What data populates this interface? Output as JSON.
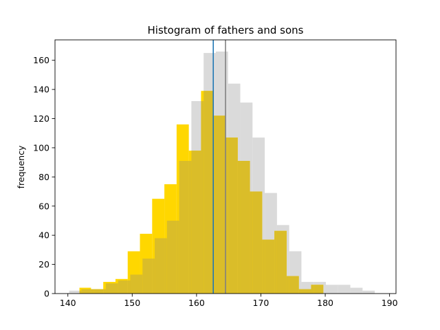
{
  "chart_data": {
    "type": "bar",
    "title": "Histogram of fathers and sons",
    "xlabel": "",
    "ylabel": "frequency",
    "xlim": [
      138,
      191
    ],
    "ylim": [
      0,
      174
    ],
    "xticks": [
      140,
      150,
      160,
      170,
      180,
      190
    ],
    "yticks": [
      0,
      20,
      40,
      60,
      80,
      100,
      120,
      140,
      160
    ],
    "grid": false,
    "series": [
      {
        "color": "#d3d3d3",
        "opacity": 0.85,
        "bins": [
          {
            "x0": 140.2,
            "x1": 142.1,
            "value": 2
          },
          {
            "x0": 142.1,
            "x1": 144.0,
            "value": 3
          },
          {
            "x0": 144.0,
            "x1": 145.9,
            "value": 3
          },
          {
            "x0": 145.9,
            "x1": 147.8,
            "value": 7
          },
          {
            "x0": 147.8,
            "x1": 149.7,
            "value": 9
          },
          {
            "x0": 149.7,
            "x1": 151.6,
            "value": 13
          },
          {
            "x0": 151.6,
            "x1": 153.5,
            "value": 24
          },
          {
            "x0": 153.5,
            "x1": 155.4,
            "value": 38
          },
          {
            "x0": 155.4,
            "x1": 157.3,
            "value": 50
          },
          {
            "x0": 157.3,
            "x1": 159.2,
            "value": 91
          },
          {
            "x0": 159.2,
            "x1": 161.1,
            "value": 132
          },
          {
            "x0": 161.1,
            "x1": 163.0,
            "value": 165
          },
          {
            "x0": 163.0,
            "x1": 164.9,
            "value": 166
          },
          {
            "x0": 164.9,
            "x1": 166.8,
            "value": 144
          },
          {
            "x0": 166.8,
            "x1": 168.7,
            "value": 131
          },
          {
            "x0": 168.7,
            "x1": 170.6,
            "value": 107
          },
          {
            "x0": 170.6,
            "x1": 172.5,
            "value": 69
          },
          {
            "x0": 172.5,
            "x1": 174.4,
            "value": 47
          },
          {
            "x0": 174.4,
            "x1": 176.3,
            "value": 29
          },
          {
            "x0": 176.3,
            "x1": 178.2,
            "value": 8
          },
          {
            "x0": 178.2,
            "x1": 180.1,
            "value": 8
          },
          {
            "x0": 180.1,
            "x1": 182.0,
            "value": 6
          },
          {
            "x0": 182.0,
            "x1": 183.9,
            "value": 6
          },
          {
            "x0": 183.9,
            "x1": 185.8,
            "value": 4
          },
          {
            "x0": 185.8,
            "x1": 187.7,
            "value": 2
          }
        ]
      },
      {
        "color": "#ffd700",
        "opacity": 1,
        "bins": [
          {
            "x0": 141.8,
            "x1": 143.6,
            "value": 4
          },
          {
            "x0": 143.6,
            "x1": 145.5,
            "value": 3
          },
          {
            "x0": 145.5,
            "x1": 147.4,
            "value": 8
          },
          {
            "x0": 147.4,
            "x1": 149.3,
            "value": 10
          },
          {
            "x0": 149.3,
            "x1": 151.2,
            "value": 29
          },
          {
            "x0": 151.2,
            "x1": 153.1,
            "value": 41
          },
          {
            "x0": 153.1,
            "x1": 155.0,
            "value": 65
          },
          {
            "x0": 155.0,
            "x1": 156.9,
            "value": 75
          },
          {
            "x0": 156.9,
            "x1": 158.8,
            "value": 116
          },
          {
            "x0": 158.8,
            "x1": 160.7,
            "value": 98
          },
          {
            "x0": 160.7,
            "x1": 162.6,
            "value": 139
          },
          {
            "x0": 162.6,
            "x1": 164.5,
            "value": 122
          },
          {
            "x0": 164.5,
            "x1": 166.4,
            "value": 107
          },
          {
            "x0": 166.4,
            "x1": 168.3,
            "value": 91
          },
          {
            "x0": 168.3,
            "x1": 170.2,
            "value": 70
          },
          {
            "x0": 170.2,
            "x1": 172.1,
            "value": 37
          },
          {
            "x0": 172.1,
            "x1": 174.0,
            "value": 43
          },
          {
            "x0": 174.0,
            "x1": 175.9,
            "value": 12
          },
          {
            "x0": 175.9,
            "x1": 177.8,
            "value": 3
          },
          {
            "x0": 177.8,
            "x1": 179.7,
            "value": 6
          }
        ]
      }
    ],
    "overlap_color": "#dabd29",
    "vlines": [
      {
        "x": 162.6,
        "color": "#1f77b4"
      },
      {
        "x": 164.5,
        "color": "#808080"
      }
    ]
  }
}
